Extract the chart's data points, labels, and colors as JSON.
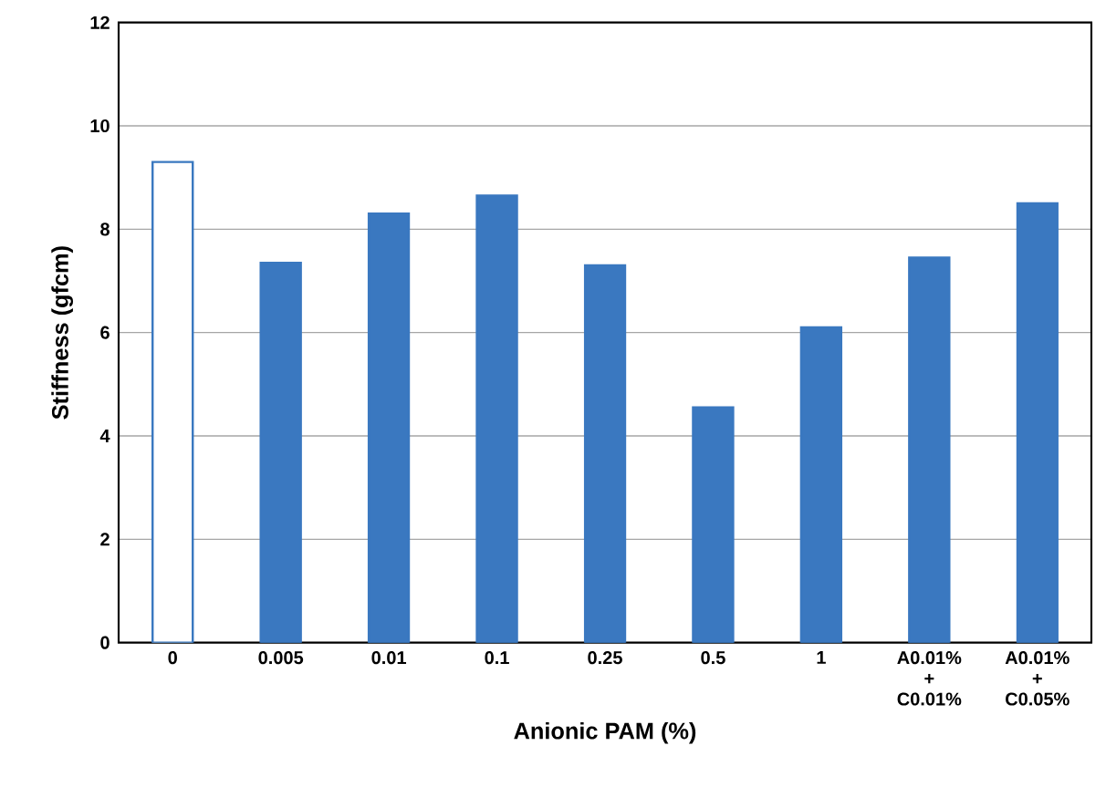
{
  "chart_data": {
    "type": "bar",
    "xlabel": "Anionic PAM (%)",
    "ylabel": "Stiffness (gfcm)",
    "categories": [
      "0",
      "0.005",
      "0.01",
      "0.1",
      "0.25",
      "0.5",
      "1",
      "A0.01% + C0.01%",
      "A0.01% + C0.05%"
    ],
    "values": [
      9.3,
      7.35,
      8.3,
      8.65,
      7.3,
      4.55,
      6.1,
      7.45,
      8.5
    ],
    "color": "#3a78c0",
    "colors": [
      "#ffffff",
      "#3a78c0",
      "#3a78c0",
      "#3a78c0",
      "#3a78c0",
      "#3a78c0",
      "#3a78c0",
      "#3a78c0",
      "#3a78c0"
    ],
    "ylim": [
      0,
      12
    ],
    "yticks": [
      0,
      2,
      4,
      6,
      8,
      10,
      12
    ],
    "grid": "y"
  }
}
